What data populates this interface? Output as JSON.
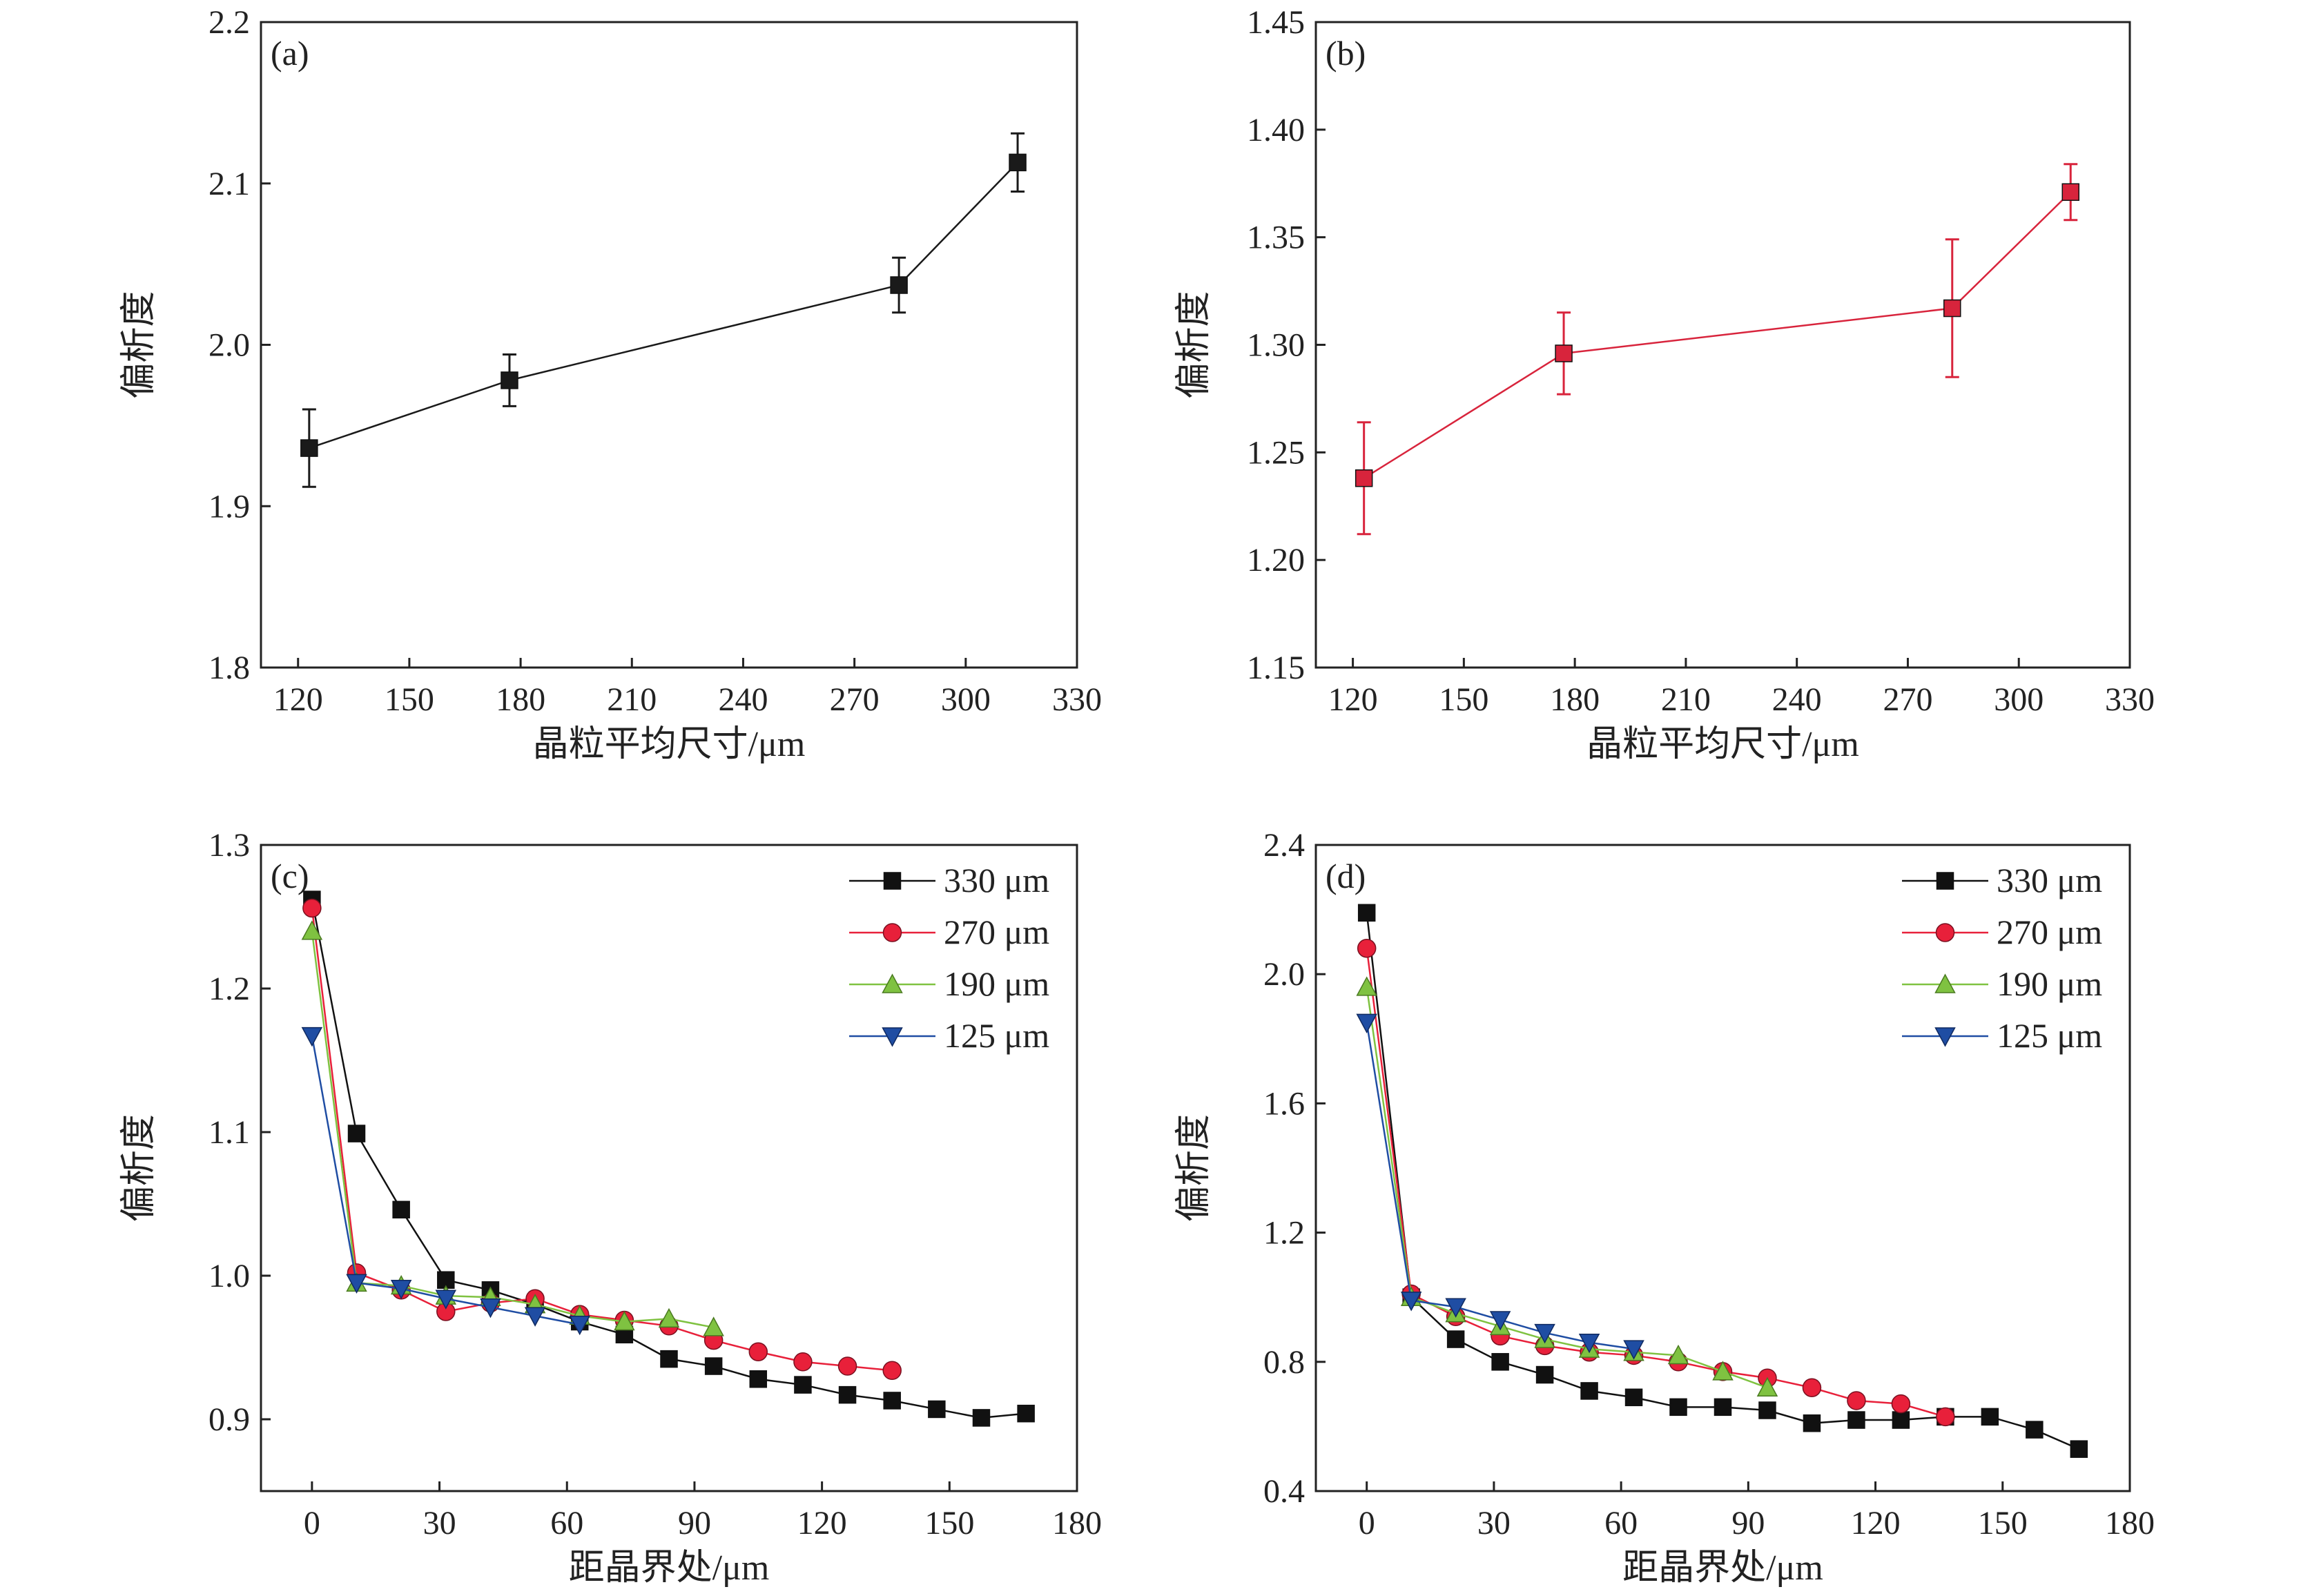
{
  "chart_data": [
    {
      "panel": "(a)",
      "type": "line",
      "xlabel": "晶粒平均尺寸/μm",
      "ylabel": "偏析度",
      "xlim": [
        110,
        330
      ],
      "ylim": [
        1.8,
        2.2
      ],
      "xticks": [
        "120",
        "150",
        "180",
        "210",
        "240",
        "270",
        "300",
        "330"
      ],
      "yticks": [
        "1.8",
        "1.9",
        "2.0",
        "2.1",
        "2.2"
      ],
      "color": "#1a1a1a",
      "series": [
        {
          "x": [
            123,
            177,
            282,
            314
          ],
          "y": [
            1.936,
            1.978,
            2.037,
            2.113
          ],
          "err": [
            0.024,
            0.016,
            0.017,
            0.018
          ]
        }
      ]
    },
    {
      "panel": "(b)",
      "type": "line",
      "xlabel": "晶粒平均尺寸/μm",
      "ylabel": "偏析度",
      "xlim": [
        110,
        330
      ],
      "ylim": [
        1.15,
        1.45
      ],
      "xticks": [
        "120",
        "150",
        "180",
        "210",
        "240",
        "270",
        "300",
        "330"
      ],
      "yticks": [
        "1.15",
        "1.20",
        "1.25",
        "1.30",
        "1.35",
        "1.40",
        "1.45"
      ],
      "color": "#d8243c",
      "series": [
        {
          "x": [
            123,
            177,
            282,
            314
          ],
          "y": [
            1.238,
            1.296,
            1.317,
            1.371
          ],
          "err": [
            0.026,
            0.019,
            0.032,
            0.013
          ]
        }
      ]
    },
    {
      "panel": "(c)",
      "type": "line",
      "xlabel": "距晶界处/μm",
      "ylabel": "偏析度",
      "xlim": [
        -12,
        180
      ],
      "ylim": [
        0.85,
        1.3
      ],
      "xticks": [
        "0",
        "30",
        "60",
        "90",
        "120",
        "150",
        "180"
      ],
      "yticks": [
        "0.9",
        "1.0",
        "1.1",
        "1.2",
        "1.3"
      ],
      "legend_position": "top-right",
      "series": [
        {
          "name": "330 μm",
          "marker": "square",
          "color": "#111111",
          "x": [
            0,
            10.5,
            21,
            31.5,
            42,
            52.5,
            63,
            73.5,
            84,
            94.5,
            105,
            115.5,
            126,
            136.5,
            147,
            157.5,
            168
          ],
          "y": [
            1.262,
            1.099,
            1.046,
            0.997,
            0.99,
            0.98,
            0.968,
            0.959,
            0.942,
            0.937,
            0.928,
            0.924,
            0.917,
            0.913,
            0.907,
            0.901,
            0.904
          ]
        },
        {
          "name": "270 μm",
          "marker": "circle",
          "color": "#e8203a",
          "x": [
            0,
            10.5,
            21,
            31.5,
            42,
            52.5,
            63,
            73.5,
            84,
            94.5,
            105,
            115.5,
            126,
            136.5
          ],
          "y": [
            1.256,
            1.002,
            0.99,
            0.975,
            0.981,
            0.984,
            0.973,
            0.969,
            0.965,
            0.955,
            0.947,
            0.94,
            0.937,
            0.934
          ]
        },
        {
          "name": "190 μm",
          "marker": "triangle-up",
          "color": "#7fc241",
          "x": [
            0,
            10.5,
            21,
            31.5,
            42,
            52.5,
            63,
            73.5,
            84,
            94.5
          ],
          "y": [
            1.24,
            0.995,
            0.993,
            0.986,
            0.985,
            0.98,
            0.972,
            0.968,
            0.97,
            0.964
          ]
        },
        {
          "name": "125 μm",
          "marker": "triangle-down",
          "color": "#1f4da3",
          "x": [
            0,
            10.5,
            21,
            31.5,
            42,
            52.5,
            63
          ],
          "y": [
            1.167,
            0.995,
            0.991,
            0.984,
            0.978,
            0.972,
            0.966
          ]
        }
      ]
    },
    {
      "panel": "(d)",
      "type": "line",
      "xlabel": "距晶界处/μm",
      "ylabel": "偏析度",
      "xlim": [
        -12,
        180
      ],
      "ylim": [
        0.4,
        2.4
      ],
      "xticks": [
        "0",
        "30",
        "60",
        "90",
        "120",
        "150",
        "180"
      ],
      "yticks": [
        "0.4",
        "0.8",
        "1.2",
        "1.6",
        "2.0",
        "2.4"
      ],
      "legend_position": "top-right",
      "series": [
        {
          "name": "330 μm",
          "marker": "square",
          "color": "#111111",
          "x": [
            0,
            10.5,
            21,
            31.5,
            42,
            52.5,
            63,
            73.5,
            84,
            94.5,
            105,
            115.5,
            126,
            136.5,
            147,
            157.5,
            168
          ],
          "y": [
            2.19,
            1.0,
            0.87,
            0.8,
            0.76,
            0.71,
            0.69,
            0.66,
            0.66,
            0.65,
            0.61,
            0.62,
            0.62,
            0.63,
            0.63,
            0.59,
            0.53
          ]
        },
        {
          "name": "270 μm",
          "marker": "circle",
          "color": "#e8203a",
          "x": [
            0,
            10.5,
            21,
            31.5,
            42,
            52.5,
            63,
            73.5,
            84,
            94.5,
            105,
            115.5,
            126,
            136.5
          ],
          "y": [
            2.08,
            1.01,
            0.94,
            0.88,
            0.85,
            0.83,
            0.82,
            0.8,
            0.77,
            0.75,
            0.72,
            0.68,
            0.67,
            0.63
          ]
        },
        {
          "name": "190 μm",
          "marker": "triangle-up",
          "color": "#7fc241",
          "x": [
            0,
            10.5,
            21,
            31.5,
            42,
            52.5,
            63,
            73.5,
            84,
            94.5
          ],
          "y": [
            1.96,
            1.0,
            0.95,
            0.91,
            0.87,
            0.84,
            0.83,
            0.82,
            0.77,
            0.72
          ]
        },
        {
          "name": "125 μm",
          "marker": "triangle-down",
          "color": "#1f4da3",
          "x": [
            0,
            10.5,
            21,
            31.5,
            42,
            52.5,
            63
          ],
          "y": [
            1.85,
            0.99,
            0.97,
            0.93,
            0.89,
            0.86,
            0.84
          ]
        }
      ]
    }
  ]
}
